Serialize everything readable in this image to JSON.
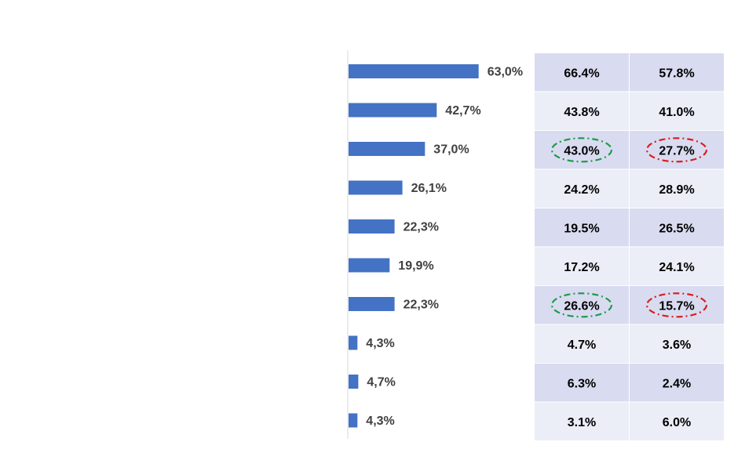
{
  "chart_data": {
    "type": "bar",
    "orientation": "horizontal",
    "values": [
      63.0,
      42.7,
      37.0,
      26.1,
      22.3,
      19.9,
      22.3,
      4.3,
      4.7,
      4.3
    ],
    "value_labels": [
      "63,0%",
      "42,7%",
      "37,0%",
      "26,1%",
      "22,3%",
      "19,9%",
      "22,3%",
      "4,3%",
      "4,7%",
      "4,3%"
    ],
    "xlim": [
      0,
      100
    ],
    "grid": false,
    "legend": "none",
    "bar_color": "#4472C4",
    "table": {
      "type": "table",
      "columns": [
        [
          "66.4%",
          "43.8%",
          "43.0%",
          "24.2%",
          "19.5%",
          "17.2%",
          "26.6%",
          "4.7%",
          "6.3%",
          "3.1%"
        ],
        [
          "57.8%",
          "41.0%",
          "27.7%",
          "28.9%",
          "26.5%",
          "24.1%",
          "15.7%",
          "3.6%",
          "2.4%",
          "6.0%"
        ]
      ],
      "row_colors": [
        "#D9DCF0",
        "#EBEDF7"
      ],
      "highlights": [
        {
          "row": 2,
          "col": 0,
          "color": "#1E9A4A"
        },
        {
          "row": 6,
          "col": 0,
          "color": "#1E9A4A"
        },
        {
          "row": 2,
          "col": 1,
          "color": "#D91E1E"
        },
        {
          "row": 6,
          "col": 1,
          "color": "#D91E1E"
        }
      ]
    }
  }
}
